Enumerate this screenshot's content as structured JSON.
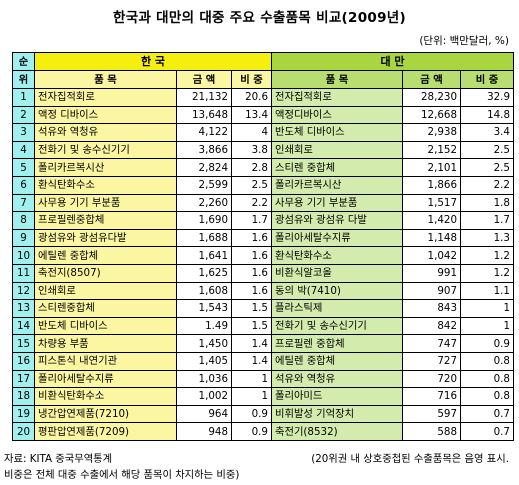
{
  "title": "한국과 대만의 대중 주요 수출품목 비교(2009년)",
  "unit": "(단위: 백만달러, %)",
  "headers": {
    "no_top": "순",
    "no_bottom": "위",
    "korea": "한 국",
    "taiwan": "대 만",
    "item": "품 목",
    "amount": "금 액",
    "share": "비 중"
  },
  "rows": [
    {
      "no": "1",
      "kr_item": "전자집적회로",
      "kr_amount": "21,132",
      "kr_share": "20.6",
      "tw_item": "전자집적회로",
      "tw_amount": "28,230",
      "tw_share": "32.9"
    },
    {
      "no": "2",
      "kr_item": "액정 디바이스",
      "kr_amount": "13,648",
      "kr_share": "13.4",
      "tw_item": "액정디바이스",
      "tw_amount": "12,668",
      "tw_share": "14.8"
    },
    {
      "no": "3",
      "kr_item": "석유와 역청유",
      "kr_amount": "4,122",
      "kr_share": "4",
      "tw_item": "반도체 디바이스",
      "tw_amount": "2,938",
      "tw_share": "3.4"
    },
    {
      "no": "4",
      "kr_item": "전화기 및 송수신기기",
      "kr_amount": "3,866",
      "kr_share": "3.8",
      "tw_item": "인쇄회로",
      "tw_amount": "2,152",
      "tw_share": "2.5"
    },
    {
      "no": "5",
      "kr_item": "폴리카르복시산",
      "kr_amount": "2,824",
      "kr_share": "2.8",
      "tw_item": "스티렌 중합체",
      "tw_amount": "2,101",
      "tw_share": "2.5"
    },
    {
      "no": "6",
      "kr_item": "환식탄화수소",
      "kr_amount": "2,599",
      "kr_share": "2.5",
      "tw_item": "폴리카르복시산",
      "tw_amount": "1,866",
      "tw_share": "2.2"
    },
    {
      "no": "7",
      "kr_item": "사무용 기기 부분품",
      "kr_amount": "2,260",
      "kr_share": "2.2",
      "tw_item": "사무용 기기 부분품",
      "tw_amount": "1,517",
      "tw_share": "1.8"
    },
    {
      "no": "8",
      "kr_item": "프로필렌중합체",
      "kr_amount": "1,690",
      "kr_share": "1.7",
      "tw_item": "광섬유와 광섬유 다발",
      "tw_amount": "1,420",
      "tw_share": "1.7"
    },
    {
      "no": "9",
      "kr_item": "광섬유와 광섬유다발",
      "kr_amount": "1,688",
      "kr_share": "1.6",
      "tw_item": "폴리아세탈수지류",
      "tw_amount": "1,148",
      "tw_share": "1.3"
    },
    {
      "no": "10",
      "kr_item": "에틸렌 중합체",
      "kr_amount": "1,641",
      "kr_share": "1.6",
      "tw_item": "환식탄화수소",
      "tw_amount": "1,042",
      "tw_share": "1.2"
    },
    {
      "no": "11",
      "kr_item": "축전지(8507)",
      "kr_amount": "1,625",
      "kr_share": "1.6",
      "tw_item": "비환식알코올",
      "tw_amount": "991",
      "tw_share": "1.2"
    },
    {
      "no": "12",
      "kr_item": "인쇄회로",
      "kr_amount": "1,608",
      "kr_share": "1.6",
      "tw_item": "동의 박(7410)",
      "tw_amount": "907",
      "tw_share": "1.1"
    },
    {
      "no": "13",
      "kr_item": "스티렌중합체",
      "kr_amount": "1,543",
      "kr_share": "1.5",
      "tw_item": "플라스틱제",
      "tw_amount": "843",
      "tw_share": "1"
    },
    {
      "no": "14",
      "kr_item": "반도체 디바이스",
      "kr_amount": "1.49",
      "kr_share": "1.5",
      "tw_item": "전화기 및 송수신기기",
      "tw_amount": "842",
      "tw_share": "1"
    },
    {
      "no": "15",
      "kr_item": "차량용 부품",
      "kr_amount": "1,450",
      "kr_share": "1.4",
      "tw_item": "프로필렌 중합체",
      "tw_amount": "747",
      "tw_share": "0.9"
    },
    {
      "no": "16",
      "kr_item": "피스톤식 내연기관",
      "kr_amount": "1,405",
      "kr_share": "1.4",
      "tw_item": "에틸렌 중합체",
      "tw_amount": "727",
      "tw_share": "0.8"
    },
    {
      "no": "17",
      "kr_item": "폴리아세탈수지류",
      "kr_amount": "1,036",
      "kr_share": "1",
      "tw_item": "석유와 역청유",
      "tw_amount": "720",
      "tw_share": "0.8"
    },
    {
      "no": "18",
      "kr_item": "비환식탄화수소",
      "kr_amount": "1,002",
      "kr_share": "1",
      "tw_item": "폴리아미드",
      "tw_amount": "716",
      "tw_share": "0.8"
    },
    {
      "no": "19",
      "kr_item": "냉간압연제품(7210)",
      "kr_amount": "964",
      "kr_share": "0.9",
      "tw_item": "비휘발성 기억장치",
      "tw_amount": "597",
      "tw_share": "0.7"
    },
    {
      "no": "20",
      "kr_item": "평판압연제품(7209)",
      "kr_amount": "948",
      "kr_share": "0.9",
      "tw_item": "축전기(8532)",
      "tw_amount": "588",
      "tw_share": "0.7"
    }
  ],
  "source": "자료: KITA 중국무역통계",
  "note": "(20위권 내 상호중첩된 수출품목은 음영 표시.",
  "definition": "비중은 전체 대중 수출에서 해당 품목이 차지하는 비중)",
  "colors": {
    "cyan": "#9ff0ef",
    "yellow_header": "#f5ef10",
    "yellow_light": "#fbf6a2",
    "green_header": "#a8d540",
    "green_light": "#d3ebad"
  }
}
